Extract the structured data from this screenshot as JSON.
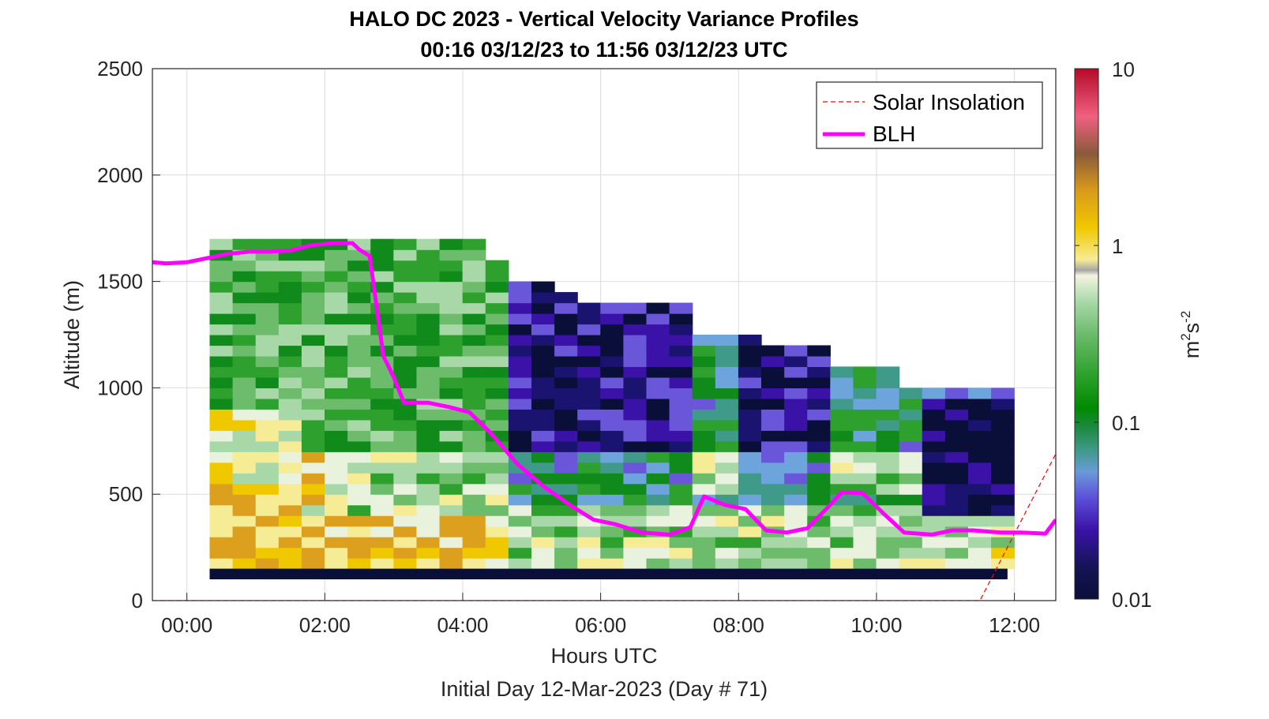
{
  "chart_data": {
    "type": "heatmap",
    "title": "HALO DC 2023 - Vertical Velocity Variance Profiles",
    "subtitle": "00:16 03/12/23 to 11:56 03/12/23  UTC",
    "xlabel": "Hours UTC",
    "footer": "Initial Day 12-Mar-2023 (Day # 71)",
    "ylabel": "Altitude (m)",
    "xlim": [
      -0.5,
      12.6
    ],
    "ylim": [
      0,
      2500
    ],
    "x_tick_values": [
      0,
      2,
      4,
      6,
      8,
      10,
      12
    ],
    "x_tick_labels": [
      "00:00",
      "02:00",
      "04:00",
      "06:00",
      "08:00",
      "10:00",
      "12:00"
    ],
    "y_ticks": [
      "0",
      "500",
      "1000",
      "1500",
      "2000",
      "2500"
    ],
    "grid": true,
    "legend_position": "top-right",
    "colorbar": {
      "label_base": "m",
      "label_sup1": "2",
      "label_mid": "s",
      "label_sup2": "-2",
      "scale": "log",
      "range": [
        0.01,
        10
      ],
      "tick_labels": [
        "10",
        "1",
        "0.1",
        "0.01"
      ]
    },
    "series": [
      {
        "name": "Solar Insolation",
        "style": "dashed",
        "color": "#ff0000",
        "x": [
          -0.5,
          11.5,
          12.6
        ],
        "y": [
          0,
          0,
          690
        ]
      },
      {
        "name": "BLH",
        "style": "solid",
        "color": "#ff00ff",
        "x": [
          -0.5,
          -0.3,
          0.0,
          0.3,
          0.6,
          0.9,
          1.2,
          1.5,
          1.8,
          2.1,
          2.4,
          2.5,
          2.65,
          2.85,
          3.0,
          3.15,
          3.5,
          3.8,
          4.1,
          4.4,
          4.8,
          5.2,
          5.6,
          5.9,
          6.2,
          6.6,
          7.0,
          7.3,
          7.5,
          7.8,
          8.1,
          8.4,
          8.7,
          9.0,
          9.3,
          9.5,
          9.8,
          10.1,
          10.4,
          10.8,
          11.1,
          11.4,
          11.8,
          12.1,
          12.45,
          12.6
        ],
        "y": [
          1590,
          1585,
          1590,
          1610,
          1630,
          1640,
          1640,
          1645,
          1670,
          1680,
          1680,
          1650,
          1620,
          1150,
          1050,
          930,
          930,
          910,
          885,
          790,
          640,
          530,
          440,
          380,
          360,
          320,
          310,
          345,
          490,
          450,
          430,
          330,
          320,
          340,
          440,
          510,
          505,
          410,
          320,
          310,
          330,
          330,
          320,
          320,
          315,
          380
        ]
      }
    ]
  },
  "legend": {
    "solar_label": "Solar Insolation",
    "blh_label": "BLH"
  }
}
